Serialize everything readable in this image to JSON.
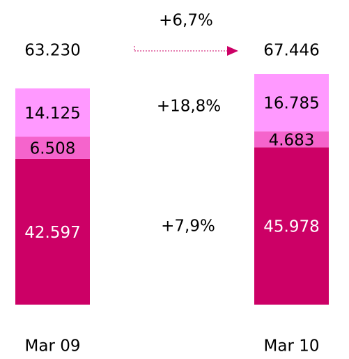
{
  "chart_data": {
    "type": "bar",
    "stacked": true,
    "categories": [
      "Mar 09",
      "Mar 10"
    ],
    "series": [
      {
        "color": "#cc0066",
        "label_color": "#ffffff",
        "values": [
          42597,
          45978
        ],
        "value_labels": [
          "42.597",
          "45.978"
        ]
      },
      {
        "color": "#f564cc",
        "label_color": "#000000",
        "values": [
          6508,
          4683
        ],
        "value_labels": [
          "6.508",
          "4.683"
        ]
      },
      {
        "color": "#ff99ff",
        "label_color": "#000000",
        "values": [
          14125,
          16785
        ],
        "value_labels": [
          "14.125",
          "16.785"
        ]
      }
    ],
    "totals": {
      "values": [
        63230,
        67446
      ],
      "value_labels": [
        "63.230",
        "67.446"
      ]
    },
    "annotations": [
      "+6,7%",
      "+18,8%",
      "+7,9%"
    ]
  }
}
